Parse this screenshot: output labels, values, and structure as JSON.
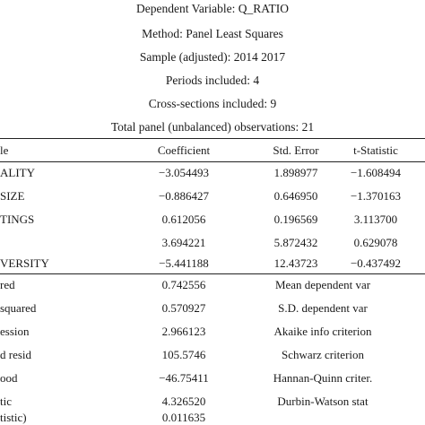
{
  "header": {
    "dependent_variable": "Dependent Variable: Q_RATIO",
    "method": "Method: Panel Least Squares",
    "sample": "Sample (adjusted): 2014 2017",
    "periods": "Periods included: 4",
    "cross_sections": "Cross-sections included: 9",
    "observations": "Total panel (unbalanced) observations: 21"
  },
  "table": {
    "columns": {
      "variable": "le",
      "coefficient": "Coefficient",
      "std_error": "Std. Error",
      "t_statistic": "t-Statistic"
    },
    "rows": [
      {
        "variable": "ALITY",
        "coefficient": "−3.054493",
        "std_error": "1.898977",
        "t_statistic": "−1.608494"
      },
      {
        "variable": "SIZE",
        "coefficient": "−0.886427",
        "std_error": "0.646950",
        "t_statistic": "−1.370163"
      },
      {
        "variable": "TINGS",
        "coefficient": "0.612056",
        "std_error": "0.196569",
        "t_statistic": "3.113700"
      },
      {
        "variable": "",
        "coefficient": "3.694221",
        "std_error": "5.872432",
        "t_statistic": "0.629078"
      },
      {
        "variable": "VERSITY",
        "coefficient": "−5.441188",
        "std_error": "12.43723",
        "t_statistic": "−0.437492"
      }
    ]
  },
  "stats": [
    {
      "label": "red",
      "value": "0.742556",
      "right_label": "Mean dependent var"
    },
    {
      "label": "squared",
      "value": "0.570927",
      "right_label": "S.D. dependent var"
    },
    {
      "label": "ession",
      "value": "2.966123",
      "right_label": "Akaike info criterion"
    },
    {
      "label": "d resid",
      "value": "105.5746",
      "right_label": "Schwarz criterion"
    },
    {
      "label": "ood",
      "value": "−46.75411",
      "right_label": "Hannan-Quinn criter."
    },
    {
      "label": "tic",
      "value": "4.326520",
      "right_label": "Durbin-Watson stat"
    },
    {
      "label": "tistic)",
      "value": "0.011635",
      "right_label": ""
    }
  ]
}
